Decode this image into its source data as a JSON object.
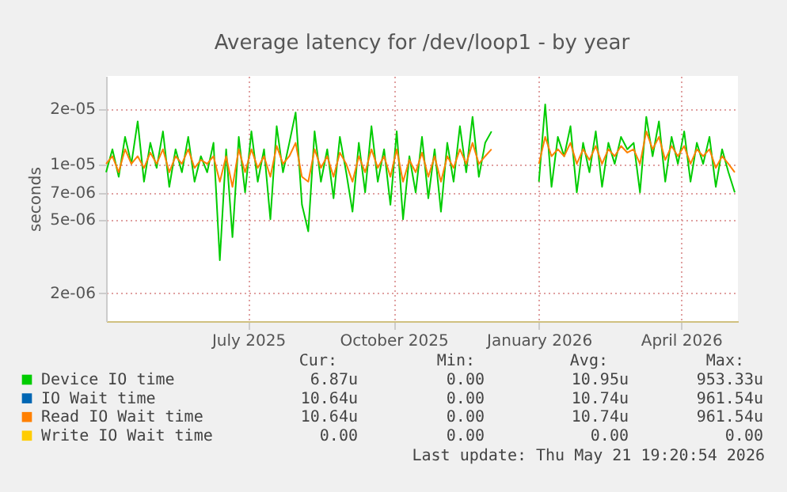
{
  "chart_data": {
    "type": "line",
    "title": "Average latency for /dev/loop1 - by year",
    "ylabel": "seconds",
    "x": [
      "2025-04-02",
      "2025-04-06",
      "2025-04-10",
      "2025-04-14",
      "2025-04-18",
      "2025-04-22",
      "2025-04-26",
      "2025-04-30",
      "2025-05-04",
      "2025-05-08",
      "2025-05-12",
      "2025-05-16",
      "2025-05-20",
      "2025-05-24",
      "2025-05-28",
      "2025-06-01",
      "2025-06-05",
      "2025-06-09",
      "2025-06-13",
      "2025-06-17",
      "2025-06-21",
      "2025-06-25",
      "2025-06-29",
      "2025-07-03",
      "2025-07-07",
      "2025-07-11",
      "2025-07-15",
      "2025-07-19",
      "2025-07-23",
      "2025-07-27",
      "2025-07-31",
      "2025-08-04",
      "2025-08-08",
      "2025-08-12",
      "2025-08-16",
      "2025-08-20",
      "2025-08-24",
      "2025-08-28",
      "2025-09-01",
      "2025-09-05",
      "2025-09-09",
      "2025-09-13",
      "2025-09-17",
      "2025-09-21",
      "2025-09-25",
      "2025-09-29",
      "2025-10-03",
      "2025-10-07",
      "2025-10-11",
      "2025-10-15",
      "2025-10-19",
      "2025-10-23",
      "2025-10-27",
      "2025-10-31",
      "2025-11-04",
      "2025-11-08",
      "2025-11-12",
      "2025-11-16",
      "2025-11-20",
      "2025-11-24",
      "2025-11-28",
      "2025-12-02",
      "2025-12-18",
      "2026-01-01",
      "2026-01-05",
      "2026-01-09",
      "2026-01-13",
      "2026-01-17",
      "2026-01-21",
      "2026-01-25",
      "2026-01-29",
      "2026-02-02",
      "2026-02-06",
      "2026-02-10",
      "2026-02-14",
      "2026-02-18",
      "2026-02-22",
      "2026-02-26",
      "2026-03-02",
      "2026-03-06",
      "2026-03-10",
      "2026-03-14",
      "2026-03-18",
      "2026-03-22",
      "2026-03-26",
      "2026-03-30",
      "2026-04-03",
      "2026-04-07",
      "2026-04-11",
      "2026-04-15",
      "2026-04-19",
      "2026-04-23",
      "2026-04-27",
      "2026-05-01",
      "2026-05-05"
    ],
    "series": [
      {
        "name": "Device IO time",
        "color": "#00cc00",
        "values": [
          9e-06,
          1.2e-05,
          8.5e-06,
          1.4e-05,
          1e-05,
          1.7e-05,
          8e-06,
          1.3e-05,
          9.5e-06,
          1.5e-05,
          7.5e-06,
          1.2e-05,
          9e-06,
          1.4e-05,
          8e-06,
          1.1e-05,
          9e-06,
          1.3e-05,
          3e-06,
          1.2e-05,
          4e-06,
          1.4e-05,
          7e-06,
          1.5e-05,
          8e-06,
          1.2e-05,
          5e-06,
          1.6e-05,
          9e-06,
          1.3e-05,
          1.9e-05,
          6e-06,
          4.3e-06,
          1.5e-05,
          8e-06,
          1.2e-05,
          6.5e-06,
          1.4e-05,
          9e-06,
          5.5e-06,
          1.3e-05,
          7e-06,
          1.6e-05,
          8e-06,
          1.2e-05,
          6e-06,
          1.5e-05,
          5e-06,
          1.1e-05,
          7e-06,
          1.4e-05,
          6.5e-06,
          1.2e-05,
          5.5e-06,
          1.3e-05,
          8e-06,
          1.6e-05,
          9e-06,
          1.8e-05,
          8.5e-06,
          1.3e-05,
          1.5e-05,
          null,
          8e-06,
          2.1e-05,
          7.5e-06,
          1.4e-05,
          1.1e-05,
          1.6e-05,
          7e-06,
          1.3e-05,
          9e-06,
          1.5e-05,
          7.5e-06,
          1.3e-05,
          1e-05,
          1.4e-05,
          1.2e-05,
          1.3e-05,
          7e-06,
          1.8e-05,
          1.1e-05,
          1.7e-05,
          8e-06,
          1.4e-05,
          1e-05,
          1.5e-05,
          8e-06,
          1.3e-05,
          1e-05,
          1.4e-05,
          7.5e-06,
          1.2e-05,
          9e-06,
          7e-06
        ]
      },
      {
        "name": "IO Wait time",
        "color": "#0066b3",
        "values": [
          null,
          null,
          null,
          null,
          null,
          null,
          null,
          null,
          null,
          null,
          null,
          null,
          null,
          null,
          null,
          null,
          null,
          null,
          null,
          null,
          null,
          null,
          null,
          null,
          null,
          null,
          null,
          null,
          null,
          null,
          null,
          null,
          null,
          null,
          null,
          null,
          null,
          null,
          null,
          null,
          null,
          null,
          null,
          null,
          null,
          null,
          null,
          null,
          null,
          null,
          null,
          null,
          null,
          null,
          null,
          null,
          null,
          null,
          null,
          null,
          null,
          null,
          null,
          null,
          null,
          null,
          null,
          null,
          null,
          null,
          null,
          null,
          null,
          null,
          null,
          null,
          null,
          null,
          null,
          null,
          null,
          null,
          null,
          null,
          null,
          null,
          null,
          null,
          null,
          null,
          null,
          null,
          null,
          null,
          null
        ]
      },
      {
        "name": "Read IO Wait time",
        "color": "#ff8000",
        "values": [
          1e-05,
          1.1e-05,
          9e-06,
          1.2e-05,
          1e-05,
          1.1e-05,
          9.5e-06,
          1.15e-05,
          1e-05,
          1.2e-05,
          9e-06,
          1.1e-05,
          1e-05,
          1.2e-05,
          9.5e-06,
          1.05e-05,
          1e-05,
          1.1e-05,
          8e-06,
          1.1e-05,
          7.5e-06,
          1.2e-05,
          9e-06,
          1.2e-05,
          9.5e-06,
          1.1e-05,
          8.5e-06,
          1.25e-05,
          1e-05,
          1.1e-05,
          1.3e-05,
          8.5e-06,
          8e-06,
          1.2e-05,
          9.5e-06,
          1.1e-05,
          8.5e-06,
          1.15e-05,
          1e-05,
          8e-06,
          1.1e-05,
          9e-06,
          1.2e-05,
          9.5e-06,
          1.1e-05,
          8.5e-06,
          1.2e-05,
          8e-06,
          1.05e-05,
          9e-06,
          1.15e-05,
          8.5e-06,
          1.1e-05,
          8e-06,
          1.1e-05,
          9.5e-06,
          1.2e-05,
          1e-05,
          1.3e-05,
          1e-05,
          1.1e-05,
          1.2e-05,
          null,
          1e-05,
          1.4e-05,
          1.1e-05,
          1.2e-05,
          1.1e-05,
          1.3e-05,
          1e-05,
          1.2e-05,
          1.05e-05,
          1.25e-05,
          1e-05,
          1.2e-05,
          1.1e-05,
          1.25e-05,
          1.15e-05,
          1.2e-05,
          1e-05,
          1.5e-05,
          1.2e-05,
          1.4e-05,
          1.05e-05,
          1.25e-05,
          1.1e-05,
          1.25e-05,
          1e-05,
          1.2e-05,
          1.1e-05,
          1.2e-05,
          9.5e-06,
          1.1e-05,
          1e-05,
          9e-06
        ]
      },
      {
        "name": "Write IO Wait time",
        "color": "#ffcc00",
        "values": [
          null,
          null,
          null,
          null,
          null,
          null,
          null,
          null,
          null,
          null,
          null,
          null,
          null,
          null,
          null,
          null,
          null,
          null,
          null,
          null,
          null,
          null,
          null,
          null,
          null,
          null,
          null,
          null,
          null,
          null,
          null,
          null,
          null,
          null,
          null,
          null,
          null,
          null,
          null,
          null,
          null,
          null,
          null,
          null,
          null,
          null,
          null,
          null,
          null,
          null,
          null,
          null,
          null,
          null,
          null,
          null,
          null,
          null,
          null,
          null,
          null,
          null,
          null,
          null,
          null,
          null,
          null,
          null,
          null,
          null,
          null,
          null,
          null,
          null,
          null,
          null,
          null,
          null,
          null,
          null,
          null,
          null,
          null,
          null,
          null,
          null,
          null,
          null,
          null,
          null,
          null,
          null,
          null,
          null,
          null
        ]
      }
    ],
    "log": "y",
    "xlim": [
      "2025-04-02",
      "2026-05-07"
    ],
    "ylim": [
      1.4e-06,
      3e-05
    ],
    "xticks": [
      {
        "value": "2025-07-01",
        "label": "July 2025"
      },
      {
        "value": "2025-10-01",
        "label": "October 2025"
      },
      {
        "value": "2026-01-01",
        "label": "January 2026"
      },
      {
        "value": "2026-04-01",
        "label": "April 2026"
      }
    ],
    "yticks": [
      {
        "value": 2e-06,
        "label": "2e-06"
      },
      {
        "value": 5e-06,
        "label": "5e-06"
      },
      {
        "value": 7e-06,
        "label": "7e-06"
      },
      {
        "value": 1e-05,
        "label": "1e-05"
      },
      {
        "value": 2e-05,
        "label": "2e-05"
      }
    ],
    "grid": true,
    "legend": "bottom",
    "annotations": [
      "Cur:",
      "Min:",
      "Avg:",
      "Max:",
      "6.87u",
      "0.00",
      "10.95u",
      "953.33u",
      "10.64u",
      "0.00",
      "10.74u",
      "961.54u",
      "10.64u",
      "0.00",
      "10.74u",
      "961.54u",
      "0.00",
      "0.00",
      "0.00",
      "0.00",
      "Last update: Thu May 21 19:20:54 2026"
    ]
  }
}
